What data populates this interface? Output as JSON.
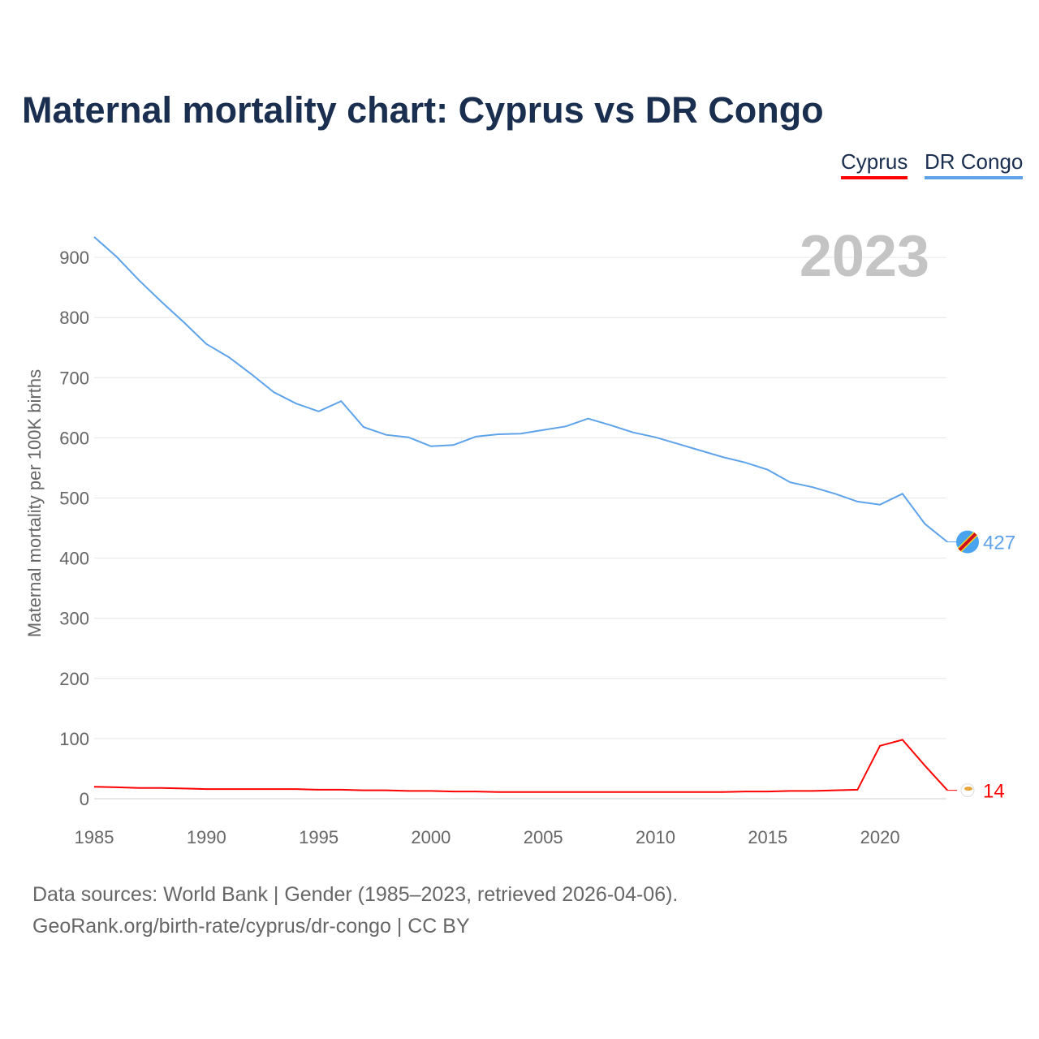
{
  "title": "Maternal mortality chart: Cyprus vs DR Congo",
  "year_label": "2023",
  "footer": {
    "line1": "Data sources: World Bank | Gender (1985–2023, retrieved 2026-04-06).",
    "line2": "GeoRank.org/birth-rate/cyprus/dr-congo | CC BY"
  },
  "chart_data": {
    "type": "line",
    "title": "Maternal mortality chart: Cyprus vs DR Congo",
    "xlabel": "",
    "ylabel": "Maternal mortality per 100K births",
    "xlim": [
      1985,
      2023
    ],
    "ylim": [
      0,
      950
    ],
    "xticks": [
      1985,
      1990,
      1995,
      2000,
      2005,
      2010,
      2015,
      2020
    ],
    "yticks": [
      0,
      100,
      200,
      300,
      400,
      500,
      600,
      700,
      800,
      900
    ],
    "grid": true,
    "legend": "top-right",
    "x": [
      1985,
      1986,
      1987,
      1988,
      1989,
      1990,
      1991,
      1992,
      1993,
      1994,
      1995,
      1996,
      1997,
      1998,
      1999,
      2000,
      2001,
      2002,
      2003,
      2004,
      2005,
      2006,
      2007,
      2008,
      2009,
      2010,
      2011,
      2012,
      2013,
      2014,
      2015,
      2016,
      2017,
      2018,
      2019,
      2020,
      2021,
      2022,
      2023
    ],
    "series": [
      {
        "name": "Cyprus",
        "color": "#ff0000",
        "end_label": "14",
        "values": [
          20,
          19,
          18,
          18,
          17,
          16,
          16,
          16,
          16,
          16,
          15,
          15,
          14,
          14,
          13,
          13,
          12,
          12,
          11,
          11,
          11,
          11,
          11,
          11,
          11,
          11,
          11,
          11,
          11,
          12,
          12,
          13,
          13,
          14,
          15,
          88,
          98,
          55,
          14
        ]
      },
      {
        "name": "DR Congo",
        "color": "#5ea3ea",
        "end_label": "427",
        "values": [
          934,
          901,
          862,
          826,
          792,
          756,
          734,
          706,
          676,
          657,
          644,
          661,
          618,
          605,
          601,
          586,
          588,
          602,
          606,
          607,
          613,
          619,
          632,
          621,
          609,
          601,
          590,
          579,
          568,
          559,
          547,
          526,
          518,
          507,
          494,
          489,
          507,
          457,
          427
        ]
      }
    ]
  }
}
